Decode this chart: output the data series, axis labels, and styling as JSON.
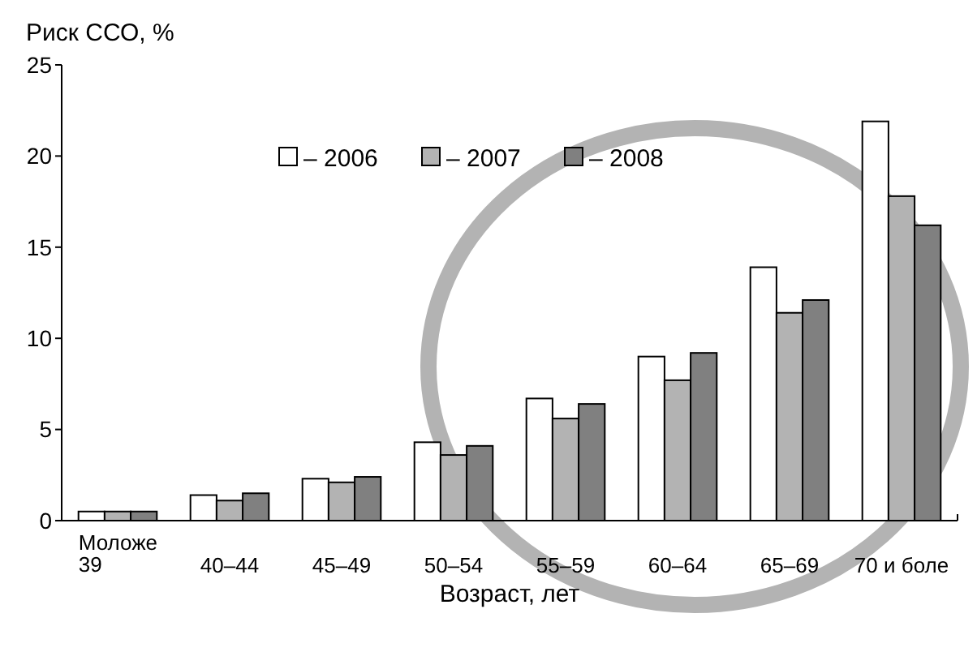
{
  "chart_data": {
    "type": "bar",
    "ylabel": "Риск ССО, %",
    "xlabel": "Возраст, лет",
    "categories": [
      "Моложе 39",
      "40–44",
      "45–49",
      "50–54",
      "55–59",
      "60–64",
      "65–69",
      "70 и боле"
    ],
    "series": [
      {
        "name": "– 2006",
        "color": "#ffffff",
        "values": [
          0.5,
          1.4,
          2.3,
          4.3,
          6.7,
          9.0,
          13.9,
          21.9
        ]
      },
      {
        "name": "– 2007",
        "color": "#b3b3b3",
        "values": [
          0.5,
          1.1,
          2.1,
          3.6,
          5.6,
          7.7,
          11.4,
          17.8
        ]
      },
      {
        "name": "– 2008",
        "color": "#808080",
        "values": [
          0.5,
          1.5,
          2.4,
          4.1,
          6.4,
          9.2,
          12.1,
          16.2
        ]
      }
    ],
    "ylim": [
      0,
      25
    ],
    "yticks": [
      0,
      5,
      10,
      15,
      20,
      25
    ],
    "grid": false,
    "legend": "top"
  }
}
